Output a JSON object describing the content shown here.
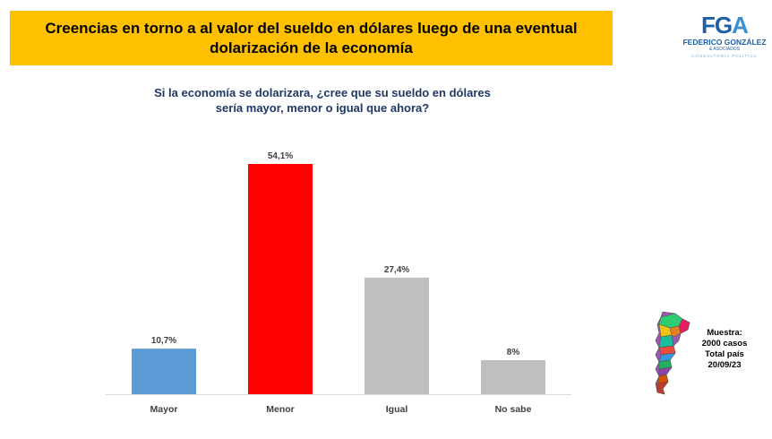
{
  "header": {
    "title_line1": "Creencias en torno a al valor del sueldo en dólares luego de una eventual",
    "title_line2": "dolarización de la economía",
    "banner_color": "#FFC000"
  },
  "logo": {
    "mark_part1": "FG",
    "mark_part2": "A",
    "name": "FEDERICO GONZÁLEZ",
    "sub": "& ASOCIADOS",
    "tag": "CONSULTORÍA POLÍTICA"
  },
  "question": {
    "line1": "Si la economía se dolarizara, ¿cree que su sueldo en dólares",
    "line2": "sería mayor, menor o igual que ahora?"
  },
  "chart_data": {
    "type": "bar",
    "categories": [
      "Mayor",
      "Menor",
      "Igual",
      "No sabe"
    ],
    "values": [
      10.7,
      54.1,
      27.4,
      8
    ],
    "data_labels": [
      "10,7%",
      "54,1%",
      "27,4%",
      "8%"
    ],
    "colors": [
      "#5B9BD5",
      "#FF0000",
      "#BFBFBF",
      "#BFBFBF"
    ],
    "ylim": [
      0,
      54.1
    ],
    "grid": false,
    "legend": "none"
  },
  "sample_note": {
    "line1": "Muestra:",
    "line2": "2000 casos",
    "line3": "Total país",
    "line4": "20/09/23"
  },
  "icons": {
    "map": "argentina-map-icon"
  }
}
